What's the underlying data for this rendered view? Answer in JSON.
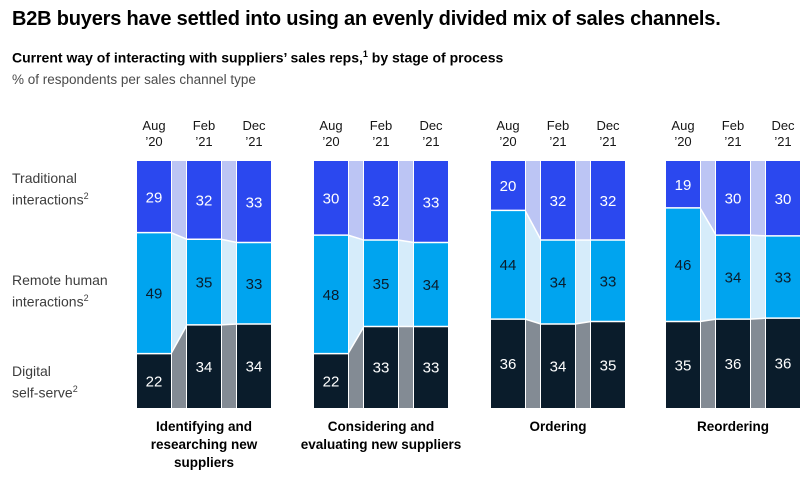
{
  "header": {
    "title": "B2B buyers have settled into using an evenly divided mix of sales channels.",
    "subtitle": {
      "main": "Current way of interacting with suppliers’ sales reps,",
      "sup": "1",
      "rest": " by stage of process"
    },
    "unit_note": "% of respondents per sales channel type"
  },
  "legend_rows": [
    {
      "line1": "Traditional",
      "line2": "interactions",
      "sup": "2"
    },
    {
      "line1": "Remote human",
      "line2": "interactions",
      "sup": "2"
    },
    {
      "line1": "Digital",
      "line2": "self-serve",
      "sup": "2"
    }
  ],
  "chart_data": {
    "type": "bar",
    "variant": "100pct-stacked-columns-with-flow-connectors",
    "unit": "% of respondents",
    "series": [
      "Traditional interactions",
      "Remote human interactions",
      "Digital self-serve"
    ],
    "series_colors": [
      "#2B48EF",
      "#00A4EF",
      "#0A1C2B"
    ],
    "connector_colors": [
      "#BCC5F4",
      "#D6ECFA",
      "#838B94"
    ],
    "value_label_colors": [
      "#FFFFFF",
      "#0A1C2B",
      "#FFFFFF"
    ],
    "period_labels": [
      [
        "Aug",
        "’20"
      ],
      [
        "Feb",
        "’21"
      ],
      [
        "Dec",
        "’21"
      ]
    ],
    "groups": [
      {
        "label": "Identifying and researching new suppliers",
        "bars": [
          [
            29,
            49,
            22
          ],
          [
            32,
            35,
            34
          ],
          [
            33,
            33,
            34
          ]
        ]
      },
      {
        "label": "Considering and evaluating new suppliers",
        "bars": [
          [
            30,
            48,
            22
          ],
          [
            32,
            35,
            33
          ],
          [
            33,
            34,
            33
          ]
        ]
      },
      {
        "label": "Ordering",
        "bars": [
          [
            20,
            44,
            36
          ],
          [
            32,
            34,
            34
          ],
          [
            32,
            33,
            35
          ]
        ]
      },
      {
        "label": "Reordering",
        "bars": [
          [
            19,
            46,
            35
          ],
          [
            30,
            34,
            36
          ],
          [
            30,
            33,
            36
          ]
        ]
      }
    ]
  }
}
